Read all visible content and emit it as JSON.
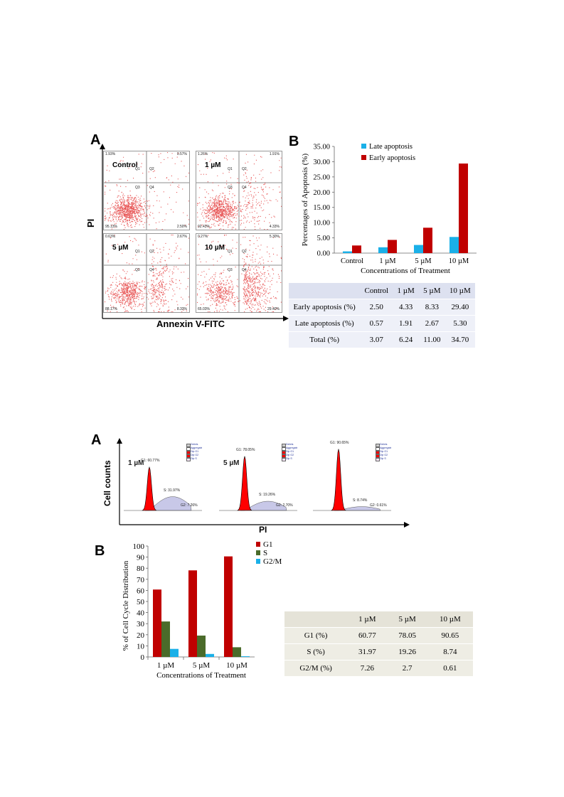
{
  "figure1": {
    "panel_a_letter": "A",
    "panel_b_letter": "B",
    "y_axis_title": "PI",
    "x_axis_title": "Annexin V-FITC",
    "plots": [
      {
        "condition": "Control",
        "ul": "1.93%",
        "ur": "0.57%",
        "ll": "95.13%",
        "lr": "2.50%",
        "q1": "Q1",
        "q2": "Q2",
        "q3": "Q3",
        "q4": "Q4"
      },
      {
        "condition": "1 µM",
        "ul": "1.26%",
        "ur": "1.91%",
        "ll": "92.43%",
        "lr": "4.33%",
        "q1": "Q1",
        "q2": "Q2",
        "q3": "Q3",
        "q4": "Q4"
      },
      {
        "condition": "5 µM",
        "ul": "0.63%",
        "ur": "2.67%",
        "ll": "88.17%",
        "lr": "8.33%",
        "q1": "Q1",
        "q2": "Q2",
        "q3": "Q3",
        "q4": "Q4"
      },
      {
        "condition": "10 µM",
        "ul": "0.27%",
        "ur": "5.30%",
        "ll": "65.03%",
        "lr": "29.40%",
        "q1": "Q1",
        "q2": "Q2",
        "q3": "Q3",
        "q4": "Q4"
      }
    ],
    "table": {
      "header": [
        "",
        "Control",
        "1 µM",
        "5 µM",
        "10 µM"
      ],
      "rows": [
        [
          "Early apoptosis (%)",
          "2.50",
          "4.33",
          "8.33",
          "29.40"
        ],
        [
          "Late apoptosis (%)",
          "0.57",
          "1.91",
          "2.67",
          "5.30"
        ],
        [
          "Total (%)",
          "3.07",
          "6.24",
          "11.00",
          "34.70"
        ]
      ]
    }
  },
  "figure2": {
    "panel_a_letter": "A",
    "panel_b_letter": "B",
    "y_axis_title": "Cell counts",
    "x_axis_title": "PI",
    "histograms": [
      {
        "condition": "1 µM",
        "g1": "G1: 60.77%",
        "s": "S: 31.97%",
        "g2": "G2: 7.26%"
      },
      {
        "condition": "5 µM",
        "g1": "G1: 78.05%",
        "s": "S: 19.26%",
        "g2": "G2: 2.70%"
      },
      {
        "condition": "",
        "g1": "G1: 90.65%",
        "s": "S: 8.74%",
        "g2": "G2: 0.61%"
      }
    ],
    "legend_small": [
      "Debris",
      "Aggregates",
      "Dip G1",
      "Dip G2",
      "Dip S"
    ],
    "table": {
      "header": [
        "",
        "1 µM",
        "5 µM",
        "10 µM"
      ],
      "rows": [
        [
          "G1 (%)",
          "60.77",
          "78.05",
          "90.65"
        ],
        [
          "S (%)",
          "31.97",
          "19.26",
          "8.74"
        ],
        [
          "G2/M (%)",
          "7.26",
          "2.7",
          "0.61"
        ]
      ]
    }
  },
  "colors": {
    "early": "#c00000",
    "late": "#1ab0e8",
    "g1": "#c00000",
    "s": "#4a6b2a",
    "g2m": "#1ab0e8",
    "dots": "#e02020"
  },
  "chart_data": [
    {
      "type": "bar",
      "title": "",
      "xlabel": "Concentrations of Treatment",
      "ylabel": "Percentages of Apoptosis (%)",
      "categories": [
        "Control",
        "1 µM",
        "5 µM",
        "10 µM"
      ],
      "series": [
        {
          "name": "Late apoptosis",
          "values": [
            0.57,
            1.91,
            2.67,
            5.3
          ]
        },
        {
          "name": "Early apoptosis",
          "values": [
            2.5,
            4.33,
            8.33,
            29.4
          ]
        }
      ],
      "ylim": [
        0,
        35
      ],
      "yticks": [
        "0.00",
        "5.00",
        "10.00",
        "15.00",
        "20.00",
        "25.00",
        "30.00",
        "35.00"
      ],
      "legend": "top-left"
    },
    {
      "type": "bar",
      "title": "",
      "xlabel": "Concentrations of Treatment",
      "ylabel": "% of Cell Cycle Distribution",
      "categories": [
        "1 µM",
        "5 µM",
        "10 µM"
      ],
      "series": [
        {
          "name": "G1",
          "values": [
            60.77,
            78.05,
            90.65
          ]
        },
        {
          "name": "S",
          "values": [
            31.97,
            19.26,
            8.74
          ]
        },
        {
          "name": "G2/M",
          "values": [
            7.26,
            2.7,
            0.61
          ]
        }
      ],
      "ylim": [
        0,
        100
      ],
      "yticks": [
        "0",
        "10",
        "20",
        "30",
        "40",
        "50",
        "60",
        "70",
        "80",
        "90",
        "100"
      ],
      "legend": "top-right"
    }
  ]
}
